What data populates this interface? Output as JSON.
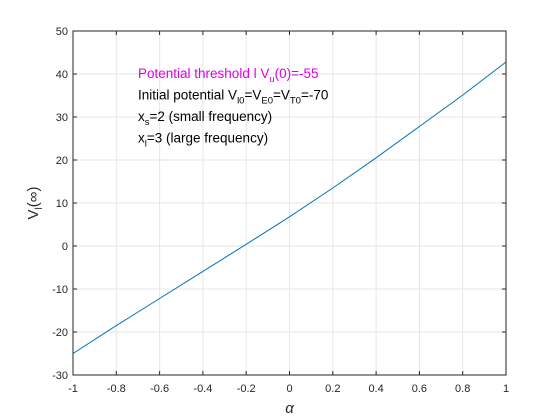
{
  "chart_data": {
    "type": "line",
    "xlabel": "α",
    "ylabel": {
      "main": "V",
      "sub": "l",
      "tail": "(∞)"
    },
    "xlim": [
      -1,
      1
    ],
    "ylim": [
      -30,
      50
    ],
    "xticks": [
      -1,
      -0.8,
      -0.6,
      -0.4,
      -0.2,
      0,
      0.2,
      0.4,
      0.6,
      0.8,
      1
    ],
    "xtick_labels": [
      "-1",
      "-0.8",
      "-0.6",
      "-0.4",
      "-0.2",
      "0",
      "0.2",
      "0.4",
      "0.6",
      "0.8",
      "1"
    ],
    "yticks": [
      -30,
      -20,
      -10,
      0,
      10,
      20,
      30,
      40,
      50
    ],
    "ytick_labels": [
      "-30",
      "-20",
      "-10",
      "0",
      "10",
      "20",
      "30",
      "40",
      "50"
    ],
    "grid": true,
    "series": [
      {
        "color": "#0072BD",
        "x": [
          -1,
          -0.8,
          -0.6,
          -0.4,
          -0.2,
          0,
          0.2,
          0.4,
          0.6,
          0.8,
          1
        ],
        "y": [
          -25,
          -18.5,
          -12.2,
          -5.9,
          0.4,
          6.8,
          13.5,
          20.5,
          27.8,
          35.1,
          42.8
        ]
      }
    ],
    "annotations": [
      {
        "color": "#E000E0",
        "parts": [
          {
            "t": "Potential threshold l V"
          },
          {
            "t": "u",
            "sub": true
          },
          {
            "t": "(0)=-55"
          }
        ]
      },
      {
        "color": "#000000",
        "parts": [
          {
            "t": "Initial potential V"
          },
          {
            "t": "l0",
            "sub": true
          },
          {
            "t": "=V"
          },
          {
            "t": "E0",
            "sub": true
          },
          {
            "t": "=V"
          },
          {
            "t": "T0",
            "sub": true
          },
          {
            "t": "=-70"
          }
        ]
      },
      {
        "color": "#000000",
        "parts": [
          {
            "t": "x"
          },
          {
            "t": "s",
            "sub": true
          },
          {
            "t": "=2 (small frequency)"
          }
        ]
      },
      {
        "color": "#000000",
        "parts": [
          {
            "t": "x"
          },
          {
            "t": "l",
            "sub": true
          },
          {
            "t": "=3 (large frequency)"
          }
        ]
      }
    ]
  }
}
